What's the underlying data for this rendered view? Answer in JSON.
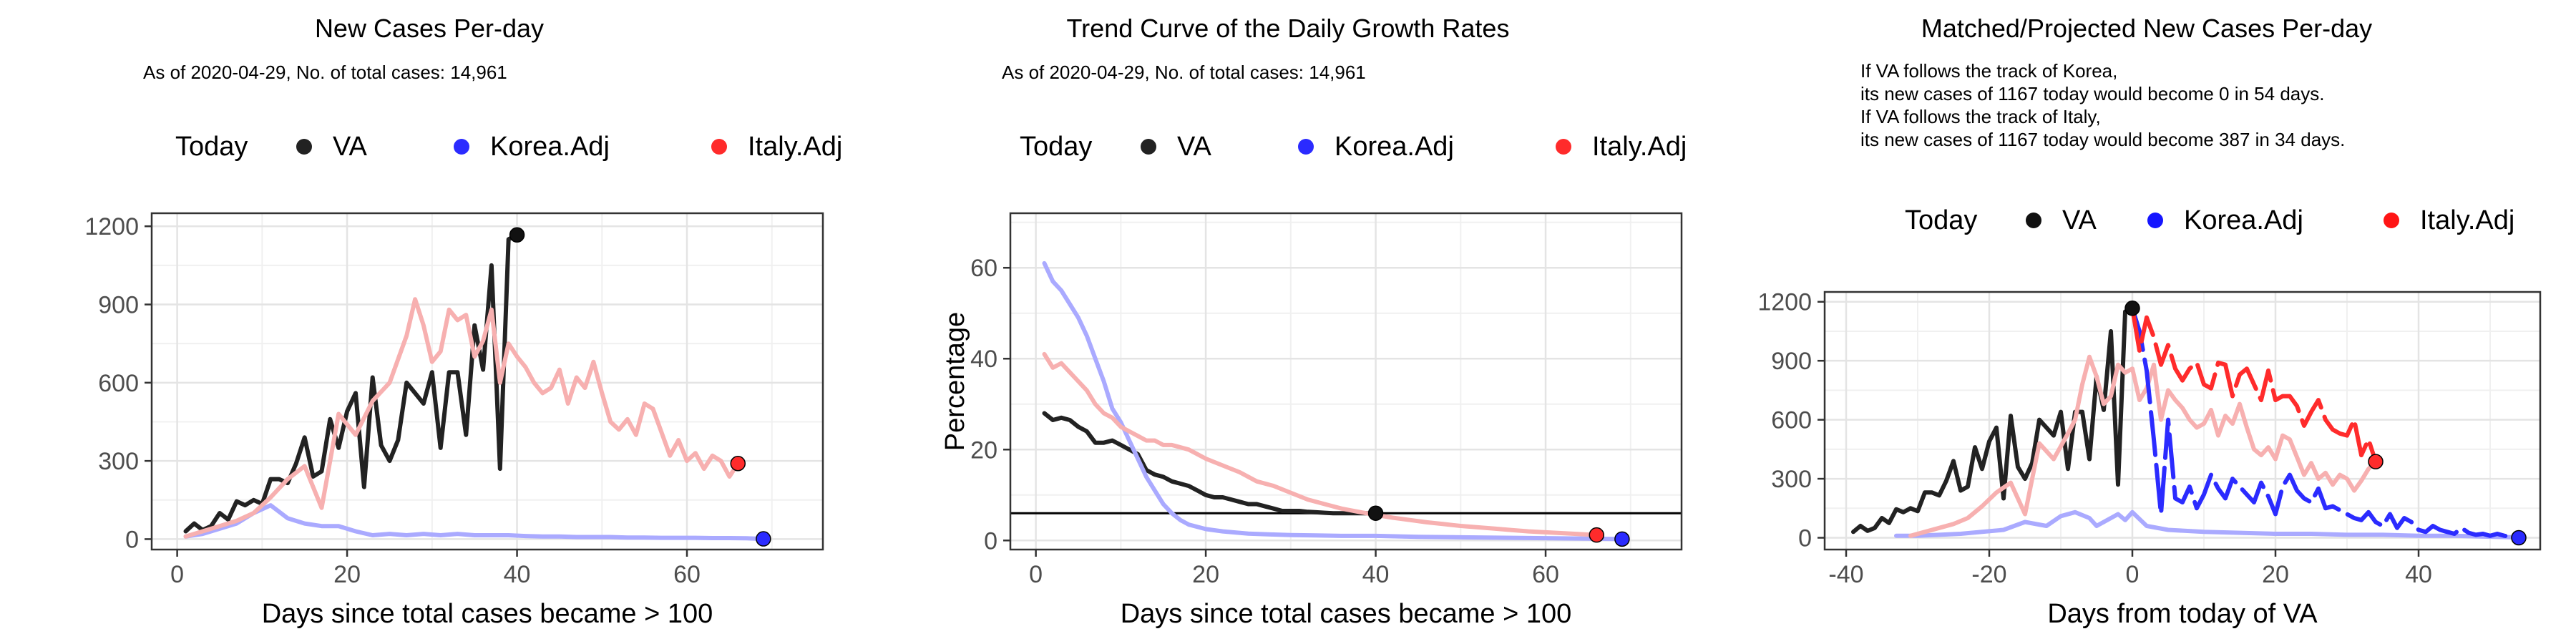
{
  "legend": {
    "title": "Today",
    "items": [
      {
        "label": "VA",
        "color": "#222222"
      },
      {
        "label": "Korea.Adj",
        "color": "#2b2bff"
      },
      {
        "label": "Italy.Adj",
        "color": "#ff2b2b"
      }
    ]
  },
  "chart_data": [
    {
      "type": "line",
      "title": "New Cases Per-day",
      "subtitle": "As of 2020-04-29, No. of total cases: 14,961",
      "xlabel": "Days since total cases became > 100",
      "ylabel": "",
      "xlim": [
        -3,
        76
      ],
      "ylim": [
        -40,
        1250
      ],
      "xticks": [
        0,
        20,
        40,
        60
      ],
      "yticks": [
        0,
        300,
        600,
        900,
        1200
      ],
      "grid": true,
      "legend_position": "top",
      "series": [
        {
          "name": "VA",
          "color": "#222222",
          "x": [
            1,
            2,
            3,
            4,
            5,
            6,
            7,
            8,
            9,
            10,
            11,
            12,
            13,
            14,
            15,
            16,
            17,
            18,
            19,
            20,
            21,
            22,
            23,
            24,
            25,
            26,
            27,
            28,
            29,
            30,
            31,
            32,
            33,
            34,
            35,
            36,
            37,
            38,
            39,
            40
          ],
          "y": [
            30,
            60,
            35,
            50,
            100,
            75,
            145,
            130,
            150,
            135,
            230,
            230,
            215,
            290,
            390,
            240,
            260,
            460,
            350,
            490,
            560,
            200,
            620,
            360,
            300,
            380,
            600,
            560,
            520,
            640,
            350,
            640,
            640,
            400,
            820,
            650,
            1050,
            270,
            1150,
            1167
          ]
        },
        {
          "name": "Korea.Adj",
          "color": "#aaaaff",
          "x": [
            1,
            3,
            5,
            7,
            9,
            11,
            13,
            15,
            17,
            19,
            21,
            23,
            25,
            27,
            29,
            31,
            33,
            35,
            37,
            39,
            41,
            43,
            45,
            47,
            49,
            51,
            53,
            55,
            57,
            59,
            61,
            63,
            65,
            67,
            69
          ],
          "y": [
            10,
            20,
            40,
            60,
            100,
            130,
            80,
            60,
            50,
            50,
            30,
            15,
            20,
            15,
            20,
            15,
            20,
            15,
            15,
            15,
            12,
            10,
            10,
            8,
            8,
            8,
            6,
            6,
            5,
            5,
            5,
            4,
            4,
            3,
            1
          ]
        },
        {
          "name": "Italy.Adj",
          "color": "#f7b0b0",
          "x": [
            1,
            3,
            5,
            7,
            9,
            11,
            13,
            15,
            17,
            19,
            21,
            23,
            25,
            27,
            28,
            29,
            30,
            31,
            32,
            33,
            34,
            35,
            36,
            37,
            38,
            39,
            40,
            41,
            42,
            43,
            44,
            45,
            46,
            47,
            48,
            49,
            50,
            51,
            52,
            53,
            54,
            55,
            56,
            57,
            58,
            59,
            60,
            61,
            62,
            63,
            64,
            65,
            66
          ],
          "y": [
            10,
            30,
            50,
            70,
            100,
            160,
            230,
            280,
            120,
            480,
            400,
            530,
            600,
            780,
            920,
            820,
            680,
            720,
            880,
            840,
            860,
            700,
            760,
            880,
            600,
            750,
            700,
            660,
            600,
            560,
            580,
            650,
            520,
            620,
            580,
            680,
            560,
            450,
            420,
            460,
            400,
            520,
            500,
            410,
            320,
            380,
            300,
            330,
            270,
            320,
            300,
            240,
            290
          ]
        }
      ],
      "today_points": [
        {
          "series": "VA",
          "x": 40,
          "y": 1167
        },
        {
          "series": "Korea.Adj",
          "x": 69,
          "y": 1
        },
        {
          "series": "Italy.Adj",
          "x": 66,
          "y": 290
        }
      ]
    },
    {
      "type": "line",
      "title": "Trend Curve of the Daily Growth Rates",
      "subtitle": "As of 2020-04-29, No. of total cases: 14,961",
      "xlabel": "Days since total cases became > 100",
      "ylabel": "Percentage",
      "xlim": [
        -3,
        76
      ],
      "ylim": [
        -2,
        72
      ],
      "xticks": [
        0,
        20,
        40,
        60
      ],
      "yticks": [
        0,
        20,
        40,
        60
      ],
      "hline": 6,
      "grid": true,
      "legend_position": "top",
      "series": [
        {
          "name": "VA",
          "color": "#222222",
          "x": [
            1,
            2,
            3,
            4,
            5,
            6,
            7,
            8,
            9,
            10,
            11,
            12,
            13,
            14,
            15,
            16,
            17,
            18,
            19,
            20,
            21,
            22,
            23,
            24,
            25,
            26,
            27,
            28,
            29,
            30,
            31,
            32,
            33,
            34,
            35,
            36,
            37,
            38,
            39,
            40
          ],
          "y": [
            28,
            26.5,
            27,
            26.5,
            25,
            24,
            21.5,
            21.5,
            22,
            21,
            20,
            19,
            15.5,
            14.5,
            14,
            13,
            12.5,
            12,
            11,
            10,
            9.5,
            9.5,
            9,
            8.5,
            8,
            8,
            7.5,
            7,
            6.5,
            6.5,
            6.5,
            6.3,
            6.2,
            6.1,
            6,
            6,
            6,
            6,
            6,
            6
          ]
        },
        {
          "name": "Korea.Adj",
          "color": "#aaaaff",
          "x": [
            1,
            2,
            3,
            4,
            5,
            6,
            7,
            8,
            9,
            10,
            11,
            12,
            13,
            14,
            15,
            16,
            17,
            18,
            20,
            22,
            25,
            28,
            30,
            33,
            36,
            40,
            45,
            50,
            55,
            60,
            65,
            69
          ],
          "y": [
            61,
            57,
            55,
            52,
            49,
            45,
            40,
            35,
            29,
            26,
            22,
            18,
            14,
            11,
            8,
            6,
            4.5,
            3.5,
            2.5,
            2,
            1.5,
            1.3,
            1.2,
            1.1,
            1,
            1,
            0.8,
            0.7,
            0.6,
            0.5,
            0.4,
            0.3
          ]
        },
        {
          "name": "Italy.Adj",
          "color": "#f7b0b0",
          "x": [
            1,
            2,
            3,
            4,
            5,
            6,
            7,
            8,
            9,
            10,
            11,
            12,
            13,
            14,
            15,
            16,
            18,
            20,
            22,
            24,
            26,
            28,
            30,
            32,
            34,
            36,
            38,
            40,
            42,
            44,
            46,
            48,
            50,
            52,
            54,
            56,
            58,
            60,
            62,
            64,
            66
          ],
          "y": [
            41,
            38,
            39,
            37,
            35,
            33,
            30,
            28,
            27,
            25,
            24,
            23,
            22,
            22,
            21,
            21,
            20,
            18,
            16.5,
            15,
            13,
            12,
            10.5,
            9,
            8,
            7,
            6.3,
            5.6,
            5,
            4.5,
            4,
            3.6,
            3.2,
            2.9,
            2.6,
            2.3,
            2,
            1.8,
            1.6,
            1.4,
            1.2
          ]
        }
      ],
      "today_points": [
        {
          "series": "VA",
          "x": 40,
          "y": 6
        },
        {
          "series": "Korea.Adj",
          "x": 69,
          "y": 0.3
        },
        {
          "series": "Italy.Adj",
          "x": 66,
          "y": 1.2
        }
      ]
    },
    {
      "type": "line",
      "title": "Matched/Projected New Cases Per-day",
      "annotation": [
        "If VA follows the track of Korea,",
        "its new cases of 1167 today would become 0 in 54 days.",
        "If VA follows the track of Italy,",
        "its new cases of 1167 today would become 387 in 34 days."
      ],
      "xlabel": "Days from today of VA",
      "ylabel": "",
      "xlim": [
        -43,
        57
      ],
      "ylim": [
        -60,
        1250
      ],
      "xticks": [
        -40,
        -20,
        0,
        20,
        40
      ],
      "yticks": [
        0,
        300,
        600,
        900,
        1200
      ],
      "grid": true,
      "legend_position": "top",
      "series": [
        {
          "name": "VA",
          "color": "#222222",
          "x": [
            -39,
            -38,
            -37,
            -36,
            -35,
            -34,
            -33,
            -32,
            -31,
            -30,
            -29,
            -28,
            -27,
            -26,
            -25,
            -24,
            -23,
            -22,
            -21,
            -20,
            -19,
            -18,
            -17,
            -16,
            -15,
            -14,
            -13,
            -12,
            -11,
            -10,
            -9,
            -8,
            -7,
            -6,
            -5,
            -4,
            -3,
            -2,
            -1,
            0
          ],
          "y": [
            30,
            60,
            35,
            50,
            100,
            75,
            145,
            130,
            150,
            135,
            230,
            230,
            215,
            290,
            390,
            240,
            260,
            460,
            350,
            490,
            560,
            200,
            620,
            360,
            300,
            380,
            600,
            560,
            520,
            640,
            350,
            640,
            640,
            400,
            820,
            650,
            1050,
            270,
            1150,
            1167
          ]
        },
        {
          "name": "Korea.Adj (matched)",
          "color": "#aaaaff",
          "x": [
            -33,
            -30,
            -27,
            -24,
            -21,
            -18,
            -15,
            -12,
            -10,
            -8,
            -6,
            -5,
            -4,
            -3,
            -2,
            -1,
            0,
            2,
            5,
            10,
            15,
            20,
            25,
            30,
            35,
            40,
            45,
            50,
            54
          ],
          "y": [
            10,
            10,
            15,
            20,
            30,
            40,
            80,
            60,
            110,
            130,
            100,
            60,
            80,
            100,
            120,
            90,
            130,
            60,
            40,
            30,
            25,
            20,
            20,
            15,
            15,
            10,
            10,
            5,
            2
          ]
        },
        {
          "name": "Italy.Adj (matched)",
          "color": "#f7b0b0",
          "x": [
            -31,
            -29,
            -27,
            -25,
            -23,
            -21,
            -19,
            -17,
            -15,
            -13,
            -11,
            -9,
            -8,
            -7,
            -6,
            -5,
            -4,
            -3,
            -2,
            -1,
            0,
            1,
            2,
            3,
            4,
            5,
            6,
            7,
            8,
            9,
            10,
            11,
            12,
            13,
            14,
            15,
            16,
            17,
            18,
            19,
            20,
            21,
            22,
            23,
            24,
            25,
            26,
            27,
            28,
            29,
            30,
            31,
            32,
            33,
            34
          ],
          "y": [
            10,
            30,
            50,
            70,
            100,
            160,
            230,
            280,
            120,
            480,
            400,
            530,
            600,
            780,
            920,
            820,
            680,
            720,
            880,
            840,
            860,
            700,
            760,
            880,
            600,
            750,
            700,
            660,
            600,
            560,
            580,
            650,
            520,
            620,
            580,
            680,
            560,
            450,
            420,
            460,
            400,
            520,
            500,
            410,
            320,
            380,
            300,
            330,
            270,
            320,
            300,
            240,
            290,
            350,
            387
          ]
        },
        {
          "name": "Korea.Adj (projected)",
          "color": "#2b2bff",
          "x": [
            0,
            1,
            2,
            3,
            4,
            5,
            6,
            7,
            8,
            9,
            10,
            11,
            12,
            13,
            14,
            15,
            16,
            17,
            18,
            19,
            20,
            21,
            22,
            23,
            24,
            25,
            26,
            27,
            28,
            29,
            30,
            31,
            32,
            33,
            34,
            35,
            36,
            37,
            38,
            39,
            40,
            41,
            42,
            43,
            44,
            45,
            46,
            47,
            48,
            49,
            50,
            51,
            52,
            53,
            54
          ],
          "y": [
            1167,
            1050,
            850,
            500,
            120,
            600,
            200,
            180,
            260,
            150,
            220,
            320,
            250,
            200,
            300,
            260,
            220,
            180,
            280,
            210,
            120,
            260,
            320,
            240,
            200,
            180,
            250,
            150,
            160,
            140,
            120,
            100,
            90,
            130,
            80,
            60,
            120,
            50,
            100,
            80,
            40,
            30,
            60,
            40,
            30,
            20,
            50,
            25,
            15,
            20,
            10,
            20,
            10,
            5,
            0
          ]
        },
        {
          "name": "Italy.Adj (projected)",
          "color": "#ff2b2b",
          "x": [
            0,
            1,
            2,
            3,
            4,
            5,
            6,
            7,
            8,
            9,
            10,
            11,
            12,
            13,
            14,
            15,
            16,
            17,
            18,
            19,
            20,
            21,
            22,
            23,
            24,
            25,
            26,
            27,
            28,
            29,
            30,
            31,
            32,
            33,
            34
          ],
          "y": [
            1167,
            950,
            1120,
            1020,
            880,
            980,
            860,
            800,
            860,
            890,
            780,
            760,
            890,
            880,
            720,
            830,
            860,
            780,
            700,
            850,
            700,
            720,
            720,
            670,
            570,
            640,
            700,
            600,
            550,
            530,
            520,
            600,
            420,
            500,
            387
          ]
        }
      ],
      "today_points": [
        {
          "series": "VA",
          "x": 0,
          "y": 1167
        },
        {
          "series": "Korea.Adj",
          "x": 54,
          "y": 0
        },
        {
          "series": "Italy.Adj",
          "x": 34,
          "y": 387
        }
      ]
    }
  ]
}
